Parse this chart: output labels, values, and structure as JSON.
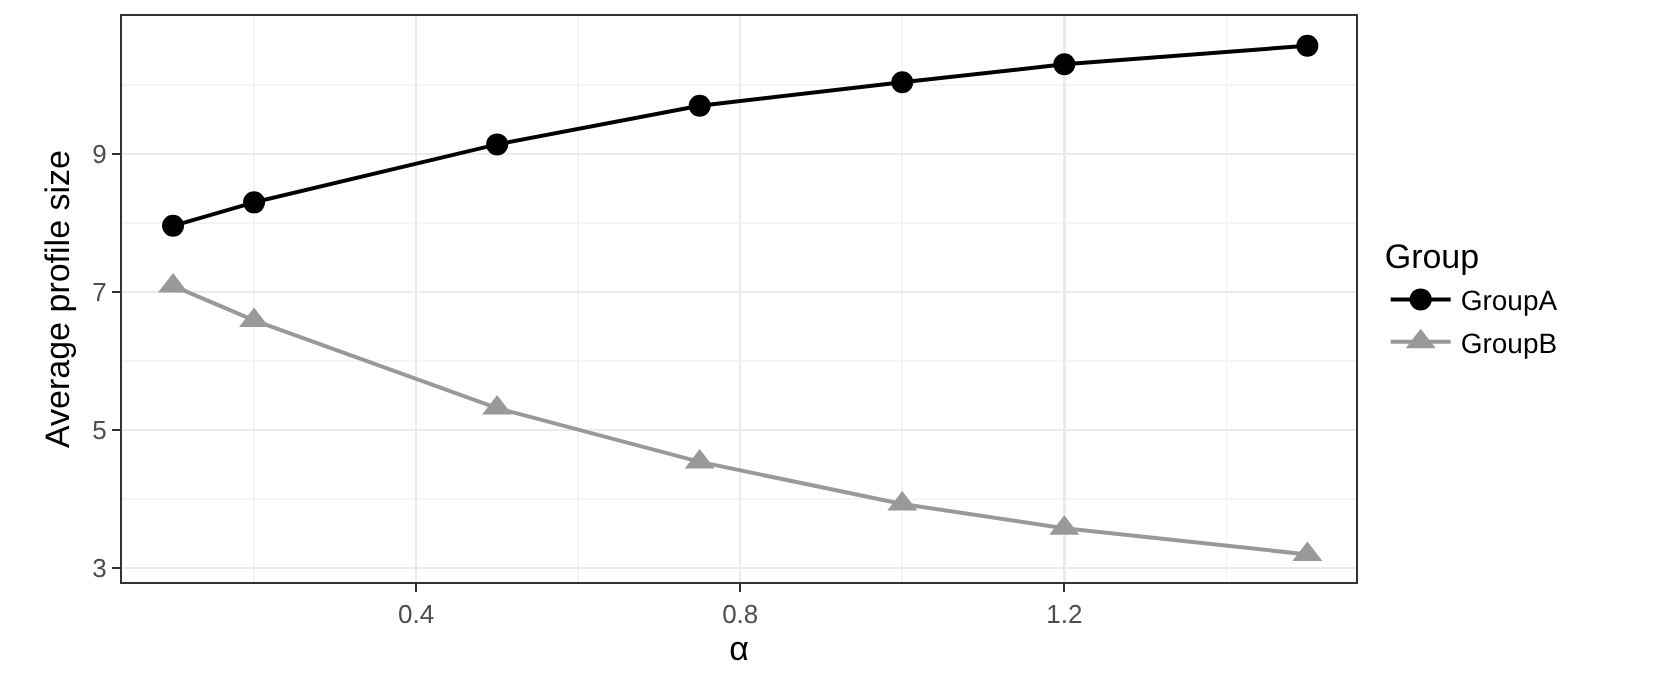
{
  "chart_data": {
    "type": "line",
    "xlabel": "α",
    "ylabel": "Average profile size",
    "legend_title": "Group",
    "x": [
      0.1,
      0.2,
      0.5,
      0.75,
      1.0,
      1.2,
      1.5
    ],
    "series": [
      {
        "name": "GroupA",
        "color": "#000000",
        "marker": "circle",
        "values": [
          7.96,
          8.3,
          9.14,
          9.7,
          10.04,
          10.3,
          10.57
        ]
      },
      {
        "name": "GroupB",
        "color": "#999999",
        "marker": "triangle",
        "values": [
          7.09,
          6.59,
          5.32,
          4.54,
          3.93,
          3.58,
          3.2
        ]
      }
    ],
    "xlim": [
      0.037,
      1.56
    ],
    "xticks": [
      0.4,
      0.8,
      1.2
    ],
    "ylim": [
      2.8,
      11.0
    ],
    "yticks": [
      3,
      5,
      7,
      9
    ],
    "grid": true,
    "legend": "right",
    "line_style": "solid"
  }
}
